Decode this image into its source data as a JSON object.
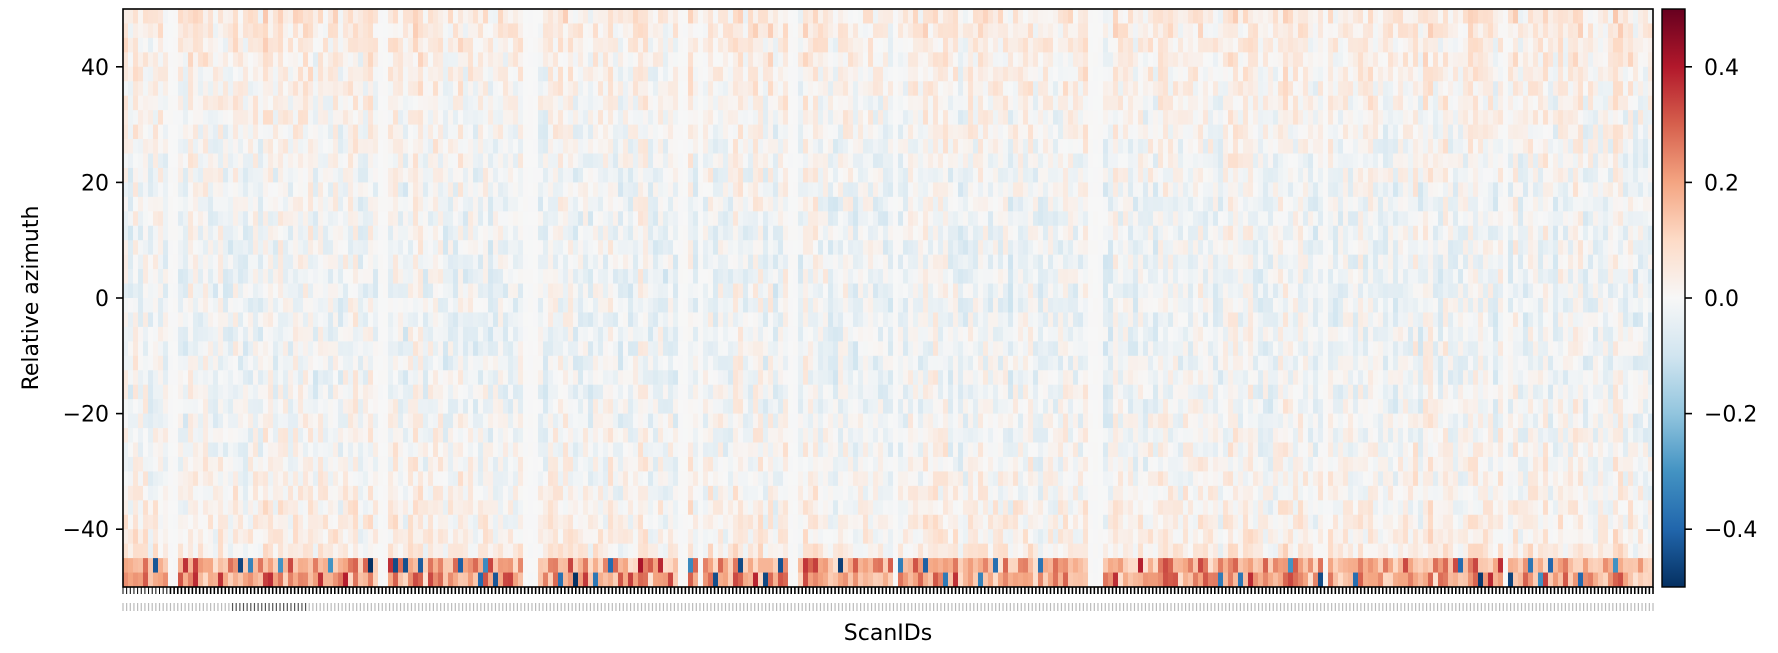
{
  "chart_data": {
    "type": "heatmap",
    "title": "",
    "xlabel": "ScanIDs",
    "ylabel": "Relative azimuth",
    "xlim": [
      0,
      1
    ],
    "ylim": [
      -50,
      50
    ],
    "y_ticks": [
      40,
      20,
      0,
      -20,
      -40
    ],
    "y_tick_labels": [
      "40",
      "20",
      "0",
      "−20",
      "−40"
    ],
    "colorbar": {
      "cmap": "RdBu_r",
      "vmin": -0.5,
      "vmax": 0.5,
      "ticks": [
        0.4,
        0.2,
        0.0,
        -0.2,
        -0.4
      ],
      "tick_labels": [
        "0.4",
        "0.2",
        "0.0",
        "−0.2",
        "−0.4"
      ]
    },
    "x_tick_labels_legible": false,
    "description_of_values": "Dense scan-by-azimuth grid of small positive/negative values (mostly within ±0.2), several near-zero vertical bands, stronger positive values near the bottom edge (-50)",
    "blank_bands_x_fraction": [
      [
        0.029,
        0.036
      ],
      [
        0.166,
        0.172
      ],
      [
        0.262,
        0.271
      ],
      [
        0.363,
        0.368
      ],
      [
        0.375,
        0.379
      ],
      [
        0.435,
        0.44
      ],
      [
        0.502,
        0.505
      ],
      [
        0.632,
        0.64
      ],
      [
        0.783,
        0.789
      ],
      [
        0.901,
        0.905
      ]
    ],
    "grid": false,
    "legend": "none"
  }
}
